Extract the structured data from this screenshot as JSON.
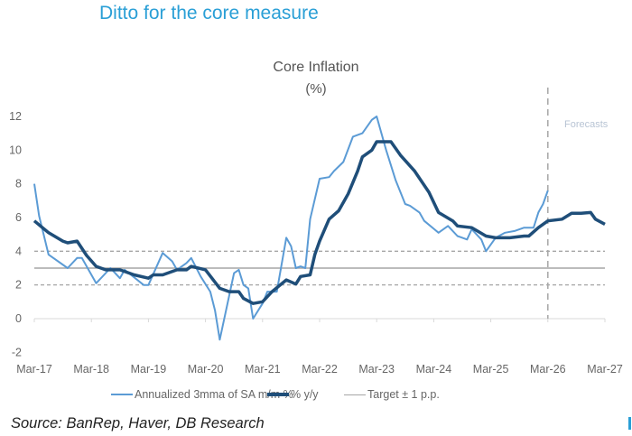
{
  "slide_title": "Ditto for the core measure",
  "source": "Source: BanRep, Haver, DB Research",
  "chart_data": {
    "type": "line",
    "title": "Core Inflation",
    "subtitle": "(%)",
    "xlabel": "",
    "ylabel": "",
    "x_ticks": [
      "Mar-17",
      "Mar-18",
      "Mar-19",
      "Mar-20",
      "Mar-21",
      "Mar-22",
      "Mar-23",
      "Mar-24",
      "Mar-25",
      "Mar-26",
      "Mar-27"
    ],
    "y_ticks": [
      12,
      10,
      8,
      6,
      4,
      2,
      0,
      -2
    ],
    "xlim": [
      "2017-03",
      "2027-03"
    ],
    "ylim": [
      -2,
      12
    ],
    "grid": false,
    "legend_position": "bottom",
    "annotation": "Forecasts",
    "forecast_start": "2026-03",
    "target": {
      "value": 3,
      "band": [
        2,
        4
      ]
    },
    "series": [
      {
        "name": "Annualized 3mma of SA m/m %",
        "color": "#5b9bd5",
        "points": [
          [
            "2017-03",
            8.0
          ],
          [
            "2017-04",
            6.1
          ],
          [
            "2017-06",
            3.8
          ],
          [
            "2017-10",
            3.0
          ],
          [
            "2017-12",
            3.6
          ],
          [
            "2018-01",
            3.6
          ],
          [
            "2018-04",
            2.1
          ],
          [
            "2018-07",
            3.0
          ],
          [
            "2018-09",
            2.4
          ],
          [
            "2018-10",
            2.9
          ],
          [
            "2019-02",
            2.0
          ],
          [
            "2019-03",
            2.0
          ],
          [
            "2019-06",
            3.9
          ],
          [
            "2019-08",
            3.4
          ],
          [
            "2019-09",
            2.9
          ],
          [
            "2019-11",
            3.3
          ],
          [
            "2019-12",
            3.6
          ],
          [
            "2020-02",
            2.5
          ],
          [
            "2020-04",
            1.6
          ],
          [
            "2020-05",
            0.5
          ],
          [
            "2020-06",
            -1.25
          ],
          [
            "2020-09",
            2.7
          ],
          [
            "2020-10",
            2.9
          ],
          [
            "2020-11",
            2.0
          ],
          [
            "2020-12",
            1.8
          ],
          [
            "2021-01",
            0.0
          ],
          [
            "2021-03",
            0.9
          ],
          [
            "2021-04",
            1.6
          ],
          [
            "2021-06",
            1.6
          ],
          [
            "2021-08",
            4.8
          ],
          [
            "2021-09",
            4.3
          ],
          [
            "2021-10",
            3.0
          ],
          [
            "2021-11",
            3.1
          ],
          [
            "2021-12",
            3.0
          ],
          [
            "2022-01",
            5.9
          ],
          [
            "2022-03",
            8.3
          ],
          [
            "2022-05",
            8.4
          ],
          [
            "2022-06",
            8.75
          ],
          [
            "2022-08",
            9.3
          ],
          [
            "2022-10",
            10.8
          ],
          [
            "2022-12",
            11.0
          ],
          [
            "2023-02",
            11.8
          ],
          [
            "2023-03",
            12.0
          ],
          [
            "2023-05",
            10.0
          ],
          [
            "2023-07",
            8.2
          ],
          [
            "2023-09",
            6.8
          ],
          [
            "2023-10",
            6.7
          ],
          [
            "2023-12",
            6.3
          ],
          [
            "2024-01",
            5.8
          ],
          [
            "2024-04",
            5.1
          ],
          [
            "2024-06",
            5.5
          ],
          [
            "2024-08",
            4.9
          ],
          [
            "2024-10",
            4.7
          ],
          [
            "2024-11",
            5.3
          ],
          [
            "2025-01",
            4.7
          ],
          [
            "2025-02",
            4.0
          ],
          [
            "2025-04",
            4.8
          ],
          [
            "2025-06",
            5.1
          ],
          [
            "2025-08",
            5.2
          ],
          [
            "2025-10",
            5.4
          ],
          [
            "2025-12",
            5.4
          ],
          [
            "2026-01",
            6.3
          ],
          [
            "2026-02",
            6.8
          ],
          [
            "2026-03",
            7.6
          ]
        ]
      },
      {
        "name": "% y/y",
        "color": "#1f4e79",
        "points": [
          [
            "2017-03",
            5.8
          ],
          [
            "2017-06",
            5.1
          ],
          [
            "2017-09",
            4.6
          ],
          [
            "2017-10",
            4.5
          ],
          [
            "2017-12",
            4.6
          ],
          [
            "2018-02",
            3.75
          ],
          [
            "2018-04",
            3.1
          ],
          [
            "2018-06",
            2.9
          ],
          [
            "2018-09",
            2.9
          ],
          [
            "2018-12",
            2.6
          ],
          [
            "2019-03",
            2.4
          ],
          [
            "2019-04",
            2.6
          ],
          [
            "2019-06",
            2.6
          ],
          [
            "2019-09",
            2.9
          ],
          [
            "2019-11",
            2.9
          ],
          [
            "2019-12",
            3.1
          ],
          [
            "2020-03",
            2.9
          ],
          [
            "2020-06",
            1.8
          ],
          [
            "2020-08",
            1.6
          ],
          [
            "2020-10",
            1.6
          ],
          [
            "2020-11",
            1.2
          ],
          [
            "2021-01",
            0.9
          ],
          [
            "2021-03",
            1.0
          ],
          [
            "2021-05",
            1.6
          ],
          [
            "2021-08",
            2.3
          ],
          [
            "2021-10",
            2.05
          ],
          [
            "2021-11",
            2.5
          ],
          [
            "2022-01",
            2.6
          ],
          [
            "2022-02",
            3.8
          ],
          [
            "2022-03",
            4.6
          ],
          [
            "2022-05",
            5.9
          ],
          [
            "2022-07",
            6.4
          ],
          [
            "2022-09",
            7.4
          ],
          [
            "2022-11",
            8.75
          ],
          [
            "2022-12",
            9.6
          ],
          [
            "2023-02",
            10.0
          ],
          [
            "2023-03",
            10.5
          ],
          [
            "2023-06",
            10.5
          ],
          [
            "2023-08",
            9.7
          ],
          [
            "2023-11",
            8.75
          ],
          [
            "2024-02",
            7.5
          ],
          [
            "2024-04",
            6.3
          ],
          [
            "2024-07",
            5.8
          ],
          [
            "2024-08",
            5.5
          ],
          [
            "2024-11",
            5.4
          ],
          [
            "2025-02",
            4.9
          ],
          [
            "2025-04",
            4.8
          ],
          [
            "2025-07",
            4.8
          ],
          [
            "2025-10",
            4.9
          ],
          [
            "2025-11",
            4.9
          ],
          [
            "2026-01",
            5.4
          ],
          [
            "2026-03",
            5.8
          ],
          [
            "2026-06",
            5.9
          ],
          [
            "2026-08",
            6.25
          ],
          [
            "2026-10",
            6.25
          ],
          [
            "2026-12",
            6.3
          ],
          [
            "2027-01",
            5.9
          ],
          [
            "2027-03",
            5.6
          ]
        ]
      },
      {
        "name": "Target ± 1 p.p.",
        "color": "#a6a6a6"
      }
    ]
  }
}
